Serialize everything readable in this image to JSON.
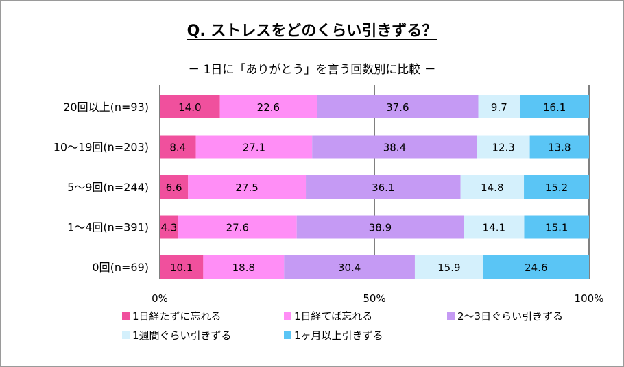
{
  "chart_data": {
    "type": "bar",
    "orientation": "horizontal",
    "stacked": "percent",
    "title": "Q. ストレスをどのくらい引きずる？",
    "subtitle": "－ 1日に「ありがとう」を言う回数別に比較 －",
    "categories": [
      "20回以上(n=93)",
      "10～19回(n=203)",
      "5～9回(n=244)",
      "1～4回(n=391)",
      "0回(n=69)"
    ],
    "series": [
      {
        "name": "1日経たずに忘れる",
        "color": "#f0509d",
        "values": [
          14.0,
          8.4,
          6.6,
          4.3,
          10.1
        ],
        "labels": [
          "14.0",
          "8.4",
          "6.6",
          "4.3",
          "10.1"
        ]
      },
      {
        "name": "1日経てば忘れる",
        "color": "#ff8ef6",
        "values": [
          22.6,
          27.1,
          27.5,
          27.6,
          18.8
        ],
        "labels": [
          "22.6",
          "27.1",
          "27.5",
          "27.6",
          "18.8"
        ]
      },
      {
        "name": "2～3日ぐらい引きずる",
        "color": "#c59af4",
        "values": [
          37.6,
          38.4,
          36.1,
          38.9,
          30.4
        ],
        "labels": [
          "37.6",
          "38.4",
          "36.1",
          "38.9",
          "30.4"
        ]
      },
      {
        "name": "1週間ぐらい引きずる",
        "color": "#d4f0fc",
        "values": [
          9.7,
          12.3,
          14.8,
          14.1,
          15.9
        ],
        "labels": [
          "9.7",
          "12.3",
          "14.8",
          "14.1",
          "15.9"
        ]
      },
      {
        "name": "1ヶ月以上引きずる",
        "color": "#5ac5f5",
        "values": [
          16.1,
          13.8,
          15.2,
          15.1,
          24.6
        ],
        "labels": [
          "16.1",
          "13.8",
          "15.2",
          "15.1",
          "24.6"
        ]
      }
    ],
    "xlim": [
      0,
      100
    ],
    "ticks": [
      0,
      50,
      100
    ],
    "tick_labels": [
      "0%",
      "50%",
      "100%"
    ],
    "grid": true,
    "legend_position": "bottom"
  }
}
